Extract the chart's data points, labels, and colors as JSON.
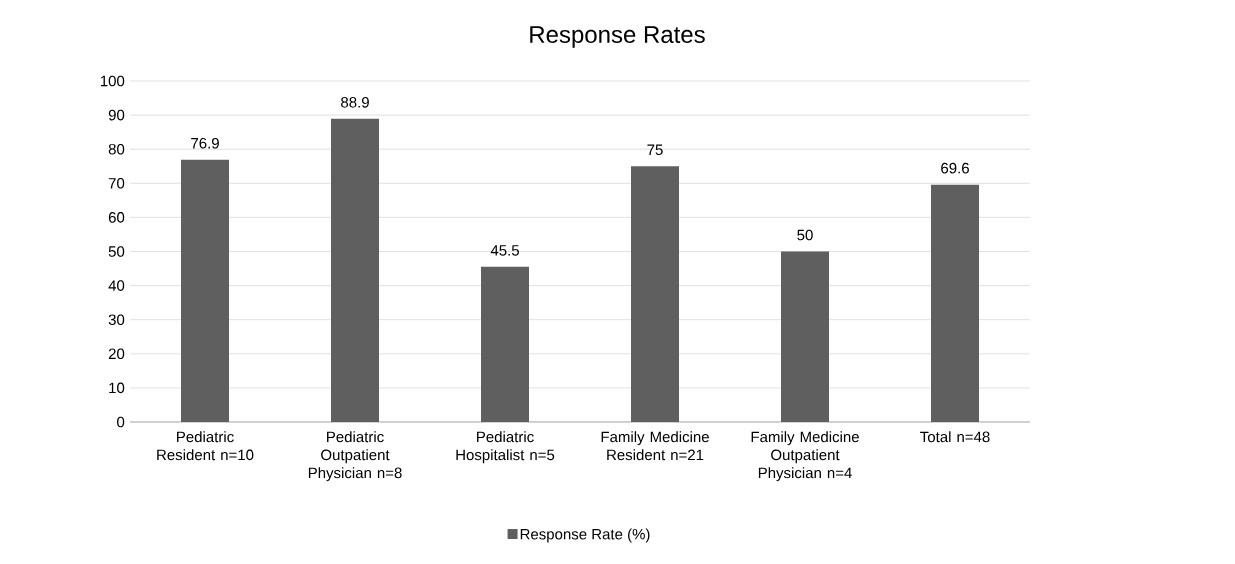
{
  "chart_data": {
    "type": "bar",
    "title": "Response Rates",
    "categories": [
      "Pediatric Resident n=10",
      "Pediatric Outpatient Physician n=8",
      "Pediatric Hospitalist n=5",
      "Family Medicine Resident n=21",
      "Family Medicine Outpatient Physician n=4",
      "Total n=48"
    ],
    "series": [
      {
        "name": "Response Rate (%)",
        "color": "#5f5f5f",
        "values": [
          76.9,
          88.9,
          45.5,
          75,
          50,
          69.6
        ]
      }
    ],
    "ylim": [
      0,
      100
    ],
    "yticks": [
      0,
      10,
      20,
      30,
      40,
      50,
      60,
      70,
      80,
      90,
      100
    ],
    "grid": "y",
    "legend": "bottom",
    "data_labels": true
  }
}
